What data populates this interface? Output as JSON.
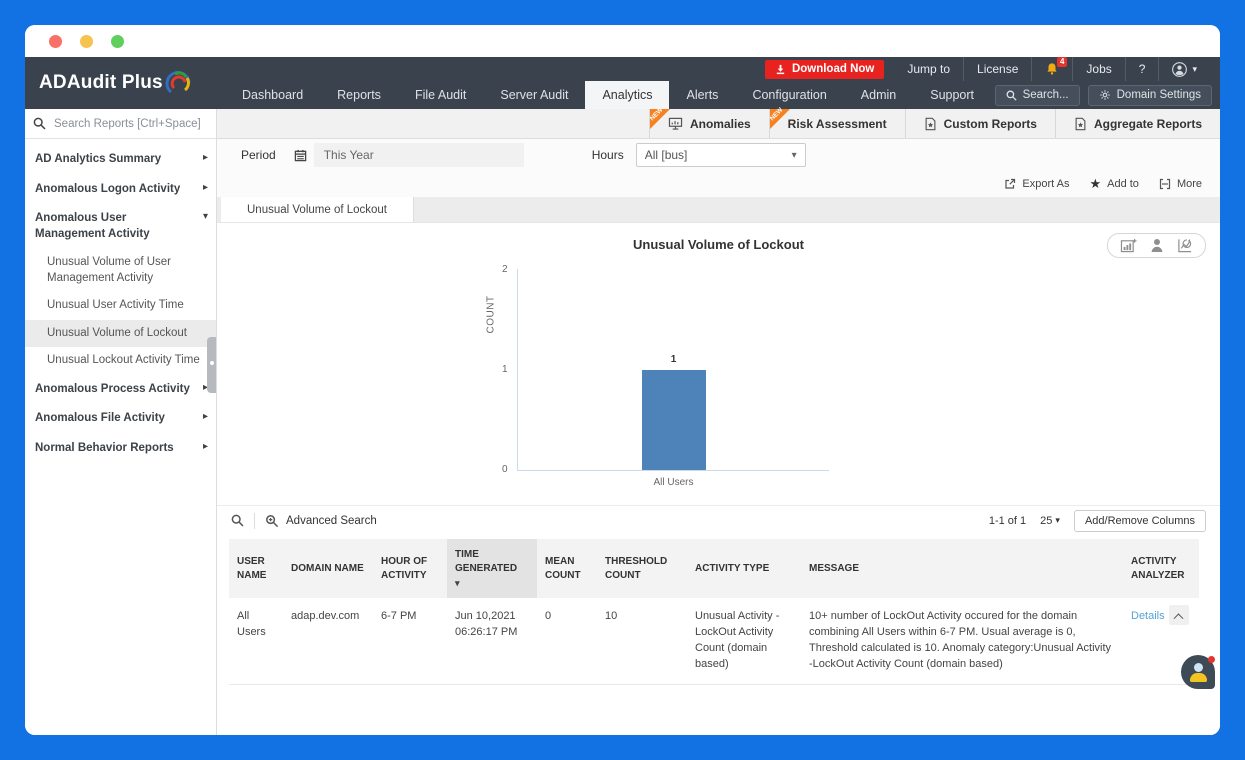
{
  "colors": {
    "frame_blue": "#1272e4",
    "header_dark": "#3a424e",
    "accent_red": "#e8231f",
    "bell_yellow": "#f2a912",
    "new_ribbon_orange": "#f5821f",
    "bar_blue": "#4d83b9",
    "link_blue": "#54a3d8"
  },
  "topbar": {
    "download_label": "Download Now",
    "jump_to": "Jump to",
    "license": "License",
    "notifications_count": "4",
    "jobs": "Jobs",
    "help": "?"
  },
  "nav": {
    "logo": "ADAudit Plus",
    "items": [
      "Dashboard",
      "Reports",
      "File Audit",
      "Server Audit",
      "Analytics",
      "Alerts",
      "Configuration",
      "Admin",
      "Support"
    ],
    "active_item": "Analytics",
    "search_label": "Search...",
    "domain_settings_label": "Domain Settings"
  },
  "quickbar": {
    "new_badge": "NEW",
    "tabs": [
      {
        "label": "Anomalies",
        "new": true
      },
      {
        "label": "Risk Assessment",
        "new": true
      },
      {
        "label": "Custom Reports",
        "new": false
      },
      {
        "label": "Aggregate Reports",
        "new": false
      }
    ]
  },
  "sidebar": {
    "search_placeholder": "Search Reports [Ctrl+Space]",
    "items": [
      {
        "label": "AD Analytics Summary",
        "level": 1,
        "state": "collapsed"
      },
      {
        "label": "Anomalous Logon Activity",
        "level": 1,
        "state": "collapsed"
      },
      {
        "label": "Anomalous User Management Activity",
        "level": 1,
        "state": "expanded"
      },
      {
        "label": "Unusual Volume of User Management Activity",
        "level": 2,
        "state": "normal"
      },
      {
        "label": "Unusual User Activity Time",
        "level": 2,
        "state": "normal"
      },
      {
        "label": "Unusual Volume of Lockout",
        "level": 2,
        "state": "selected"
      },
      {
        "label": "Unusual Lockout Activity Time",
        "level": 2,
        "state": "normal"
      },
      {
        "label": "Anomalous Process Activity",
        "level": 1,
        "state": "collapsed"
      },
      {
        "label": "Anomalous File Activity",
        "level": 1,
        "state": "collapsed"
      },
      {
        "label": "Normal Behavior Reports",
        "level": 1,
        "state": "collapsed"
      }
    ]
  },
  "filters": {
    "period_label": "Period",
    "period_value": "This Year",
    "hours_label": "Hours",
    "hours_value": "All [bus]"
  },
  "actions": {
    "export_as": "Export As",
    "add_to": "Add to",
    "more": "More"
  },
  "report_tab": "Unusual Volume of Lockout",
  "chart_data": {
    "type": "bar",
    "title": "Unusual Volume of Lockout",
    "categories": [
      "All Users"
    ],
    "values": [
      1
    ],
    "xlabel": "",
    "ylabel": "COUNT",
    "ylim": [
      0,
      2
    ],
    "yticks": [
      0,
      1,
      2
    ],
    "grid": false,
    "legend": false,
    "bar_color": "#4d83b9"
  },
  "table": {
    "toolbar": {
      "advanced_search_label": "Advanced Search",
      "range": "1-1 of 1",
      "page_size": "25",
      "add_remove_columns_label": "Add/Remove Columns"
    },
    "columns": [
      "USER NAME",
      "DOMAIN NAME",
      "HOUR OF ACTIVITY",
      "TIME GENERATED",
      "MEAN COUNT",
      "THRESHOLD COUNT",
      "ACTIVITY TYPE",
      "MESSAGE",
      "ACTIVITY ANALYZER"
    ],
    "sorted_column": "TIME GENERATED",
    "rows": [
      {
        "user_name": "All Users",
        "domain_name": "adap.dev.com",
        "hour_of_activity": "6-7 PM",
        "time_generated": "Jun 10,2021 06:26:17 PM",
        "mean_count": "0",
        "threshold_count": "10",
        "activity_type": "Unusual Activity - LockOut Activity Count (domain based)",
        "message": "10+ number of LockOut Activity occured for the domain combining All Users within 6-7 PM. Usual average is 0, Threshold calculated is 10. Anomaly category:Unusual Activity -LockOut Activity Count (domain based)",
        "activity_analyzer_label": "Details"
      }
    ]
  }
}
